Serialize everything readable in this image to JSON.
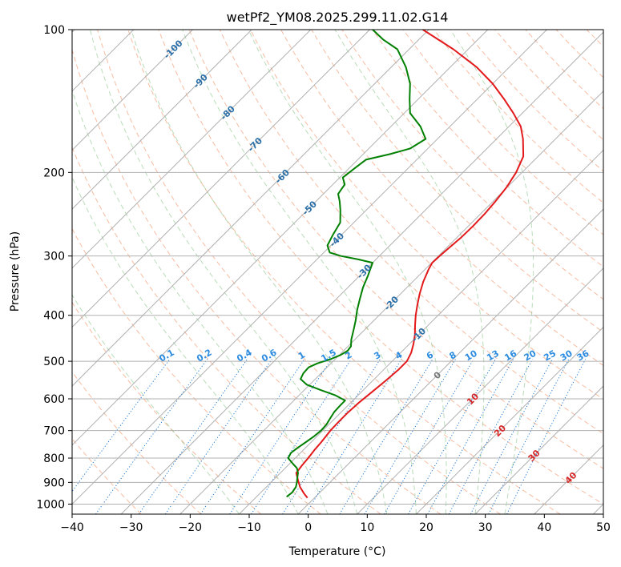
{
  "chart_data": {
    "type": "line",
    "title": "wetPf2_YM08.2025.299.11.02.G14",
    "xlabel": "Temperature (°C)",
    "ylabel": "Pressure (hPa)",
    "xlim": [
      -40,
      50
    ],
    "ylim": [
      1050,
      100
    ],
    "y_scale": "log",
    "x_ticks": [
      -40,
      -30,
      -20,
      -10,
      0,
      10,
      20,
      30,
      40,
      50
    ],
    "x_tick_labels": [
      "−40",
      "−30",
      "−20",
      "−10",
      "0",
      "10",
      "20",
      "30",
      "40",
      "50"
    ],
    "y_ticks": [
      1000,
      900,
      800,
      700,
      600,
      500,
      400,
      300,
      200,
      100
    ],
    "y_tick_labels": [
      "1000",
      "900",
      "800",
      "700",
      "600",
      "500",
      "400",
      "300",
      "200",
      "100"
    ],
    "grid": true,
    "series": [
      {
        "color": "#e31a1c",
        "points": [
          [
            970,
            -1.2
          ],
          [
            950,
            -2.5
          ],
          [
            920,
            -4.3
          ],
          [
            890,
            -5.8
          ],
          [
            860,
            -7.3
          ],
          [
            830,
            -7.6
          ],
          [
            800,
            -7.8
          ],
          [
            770,
            -8.1
          ],
          [
            740,
            -8.3
          ],
          [
            700,
            -8.7
          ],
          [
            670,
            -8.8
          ],
          [
            640,
            -8.8
          ],
          [
            610,
            -8.6
          ],
          [
            580,
            -8.2
          ],
          [
            550,
            -7.8
          ],
          [
            520,
            -7.5
          ],
          [
            500,
            -7.5
          ],
          [
            480,
            -8.2
          ],
          [
            460,
            -9.3
          ],
          [
            440,
            -10.6
          ],
          [
            420,
            -12.2
          ],
          [
            400,
            -13.8
          ],
          [
            380,
            -15.3
          ],
          [
            360,
            -16.8
          ],
          [
            340,
            -18.2
          ],
          [
            320,
            -19.4
          ],
          [
            310,
            -19.9
          ],
          [
            300,
            -19.8
          ],
          [
            290,
            -19.6
          ],
          [
            275,
            -19.3
          ],
          [
            260,
            -19.2
          ],
          [
            245,
            -19.3
          ],
          [
            230,
            -19.6
          ],
          [
            215,
            -20.1
          ],
          [
            200,
            -21.0
          ],
          [
            185,
            -22.5
          ],
          [
            170,
            -25.5
          ],
          [
            160,
            -28.0
          ],
          [
            150,
            -31.5
          ],
          [
            140,
            -35.5
          ],
          [
            130,
            -40.0
          ],
          [
            120,
            -45.5
          ],
          [
            110,
            -52.5
          ],
          [
            100,
            -61.0
          ]
        ]
      },
      {
        "color": "#008000",
        "points": [
          [
            965,
            -4.9
          ],
          [
            945,
            -4.7
          ],
          [
            920,
            -5.0
          ],
          [
            900,
            -5.6
          ],
          [
            880,
            -6.3
          ],
          [
            860,
            -7.0
          ],
          [
            840,
            -8.0
          ],
          [
            820,
            -9.6
          ],
          [
            800,
            -11.2
          ],
          [
            780,
            -11.6
          ],
          [
            760,
            -11.3
          ],
          [
            740,
            -10.9
          ],
          [
            720,
            -10.5
          ],
          [
            700,
            -10.3
          ],
          [
            680,
            -10.4
          ],
          [
            660,
            -10.8
          ],
          [
            640,
            -11.2
          ],
          [
            620,
            -11.3
          ],
          [
            605,
            -11.3
          ],
          [
            590,
            -13.8
          ],
          [
            575,
            -17.2
          ],
          [
            560,
            -20.5
          ],
          [
            545,
            -22.5
          ],
          [
            530,
            -23.0
          ],
          [
            515,
            -23.1
          ],
          [
            505,
            -22.3
          ],
          [
            495,
            -20.8
          ],
          [
            485,
            -19.8
          ],
          [
            475,
            -19.3
          ],
          [
            465,
            -19.5
          ],
          [
            450,
            -20.6
          ],
          [
            430,
            -21.8
          ],
          [
            410,
            -23.1
          ],
          [
            390,
            -24.6
          ],
          [
            370,
            -26.0
          ],
          [
            350,
            -27.4
          ],
          [
            330,
            -28.6
          ],
          [
            310,
            -30.0
          ],
          [
            305,
            -33.0
          ],
          [
            300,
            -36.5
          ],
          [
            295,
            -39.0
          ],
          [
            285,
            -40.6
          ],
          [
            270,
            -41.5
          ],
          [
            255,
            -42.3
          ],
          [
            240,
            -44.4
          ],
          [
            230,
            -46.0
          ],
          [
            222,
            -47.5
          ],
          [
            212,
            -48.0
          ],
          [
            205,
            -49.5
          ],
          [
            195,
            -49.0
          ],
          [
            188,
            -48.6
          ],
          [
            183,
            -45.5
          ],
          [
            178,
            -43.0
          ],
          [
            170,
            -42.0
          ],
          [
            160,
            -45.0
          ],
          [
            150,
            -49.0
          ],
          [
            140,
            -51.5
          ],
          [
            130,
            -54.0
          ],
          [
            120,
            -57.5
          ],
          [
            110,
            -62.0
          ],
          [
            105,
            -66.0
          ],
          [
            100,
            -69.5
          ]
        ]
      }
    ],
    "isotherm_labels": [
      "-100",
      "-90",
      "-80",
      "-70",
      "-60",
      "-50",
      "-40",
      "-30",
      "-20",
      "-10"
    ],
    "zero_isotherm_label": "0",
    "temperature_labels": [
      "10",
      "20",
      "30",
      "40"
    ],
    "mixing_ratio_labels": [
      "0.1",
      "0.2",
      "0.4",
      "0.6",
      "1",
      "1.5",
      "2",
      "3",
      "4",
      "6",
      "8",
      "10",
      "13",
      "16",
      "20",
      "25",
      "30",
      "36"
    ]
  }
}
